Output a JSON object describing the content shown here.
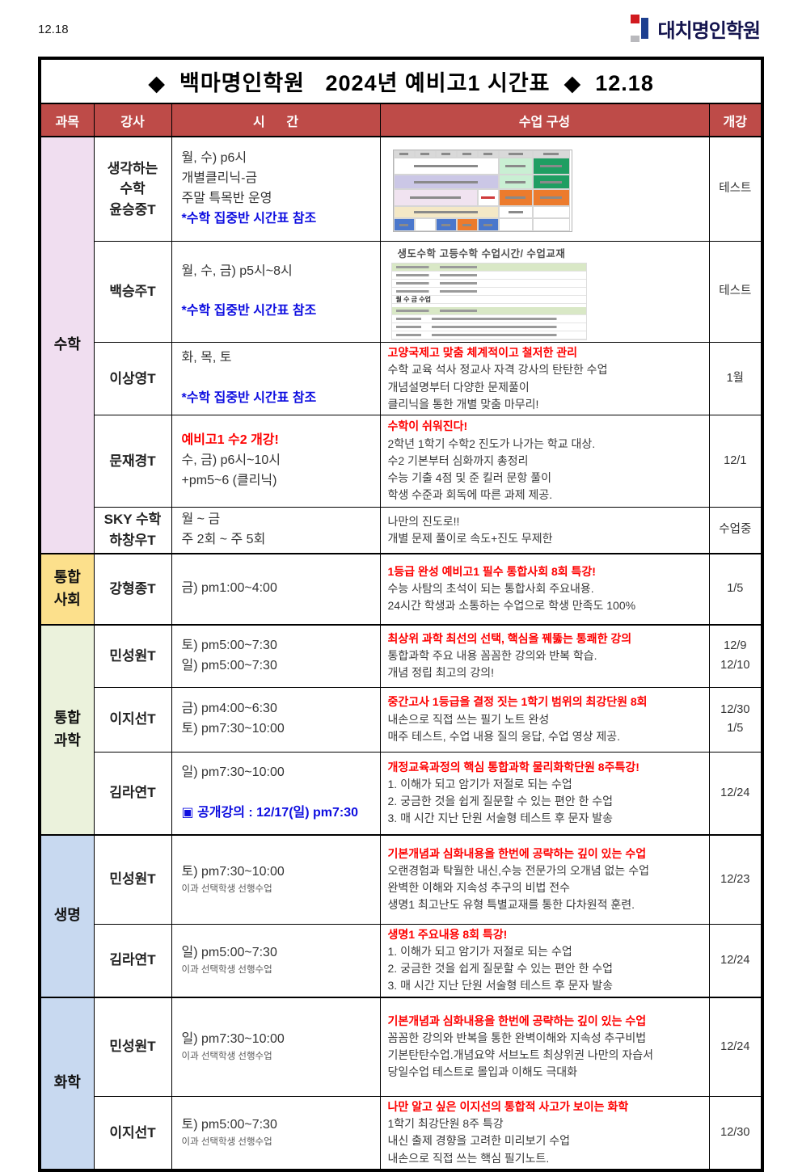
{
  "page": {
    "corner_date": "12.18"
  },
  "brand": {
    "logo_text": "대치명인학원"
  },
  "colors": {
    "header_bg": "#BE4B48",
    "header_text": "#FFFFFF",
    "subject_math_bg": "#F0DEF0",
    "subject_social_bg": "#FCE08C",
    "subject_science_bg": "#EBF2DC",
    "subject_bio_bg": "#C8D9F0",
    "subject_chem_bg": "#C8D9F0",
    "highlight_red": "#FE0000",
    "highlight_blue": "#0D0DE0"
  },
  "table": {
    "title": "◆  백마명인학원   2024년 예비고1 시간표  ◆  12.18",
    "headers": {
      "subject": "과목",
      "instructor": "강사",
      "time": "시      간",
      "composition": "수업 구성",
      "start": "개강"
    }
  },
  "groups": [
    {
      "label": "수학"
    },
    {
      "label": "통합\n사회"
    },
    {
      "label": "통합\n과학"
    },
    {
      "label": "생명"
    },
    {
      "label": "화학"
    }
  ],
  "embedded": {
    "math2_title": "생도수학 고등수학 수업시간/ 수업교재",
    "math2_bold_row": "월 수 금 수업"
  },
  "rows": [
    {
      "instructor": [
        {
          "t": "생각하는"
        },
        {
          "t": "수학"
        },
        {
          "t": "윤승중T"
        }
      ],
      "time": [
        {
          "t": "월, 수) p6시"
        },
        {
          "t": " 개별클리닉-금"
        },
        {
          "t": "주말 특목반 운영"
        },
        {
          "t": "*수학 집중반 시간표 참조",
          "s": "blue"
        }
      ],
      "comp": [],
      "start": [
        {
          "t": "테스트"
        }
      ]
    },
    {
      "instructor": [
        {
          "t": "백승주T"
        }
      ],
      "time": [
        {
          "t": "월, 수, 금) p5시~8시"
        },
        {
          "t": ""
        },
        {
          "t": "*수학 집중반 시간표 참조",
          "s": "blue"
        }
      ],
      "comp": [],
      "start": [
        {
          "t": "테스트"
        }
      ]
    },
    {
      "instructor": [
        {
          "t": "이상영T"
        }
      ],
      "time": [
        {
          "t": "화, 목, 토"
        },
        {
          "t": ""
        },
        {
          "t": "*수학 집중반 시간표 참조",
          "s": "blue"
        }
      ],
      "comp": [
        {
          "t": "고양국제고 맞춤   체계적이고 철저한 관리",
          "s": "red"
        },
        {
          "t": "수학 교육 석사 정교사 자격 강사의 탄탄한 수업"
        },
        {
          "t": "개념설명부터 다양한 문제풀이"
        },
        {
          "t": "클리닉을 통한 개별 맞춤 마무리!"
        }
      ],
      "start": [
        {
          "t": "1월"
        }
      ]
    },
    {
      "instructor": [
        {
          "t": "문재경T"
        }
      ],
      "time": [
        {
          "t": "예비고1 수2 개강!",
          "s": "red"
        },
        {
          "t": "수, 금) p6시~10시"
        },
        {
          "t": "+pm5~6 (클리닉)"
        }
      ],
      "comp": [
        {
          "t": "수학이 쉬워진다!",
          "s": "red"
        },
        {
          "t": "2학년 1학기 수학2 진도가 나가는 학교 대상."
        },
        {
          "t": "수2 기본부터 심화까지 총정리"
        },
        {
          "t": "수능 기출 4점 및 준 킬러 문항 풀이"
        },
        {
          "t": "학생 수준과 회독에 따른 과제 제공."
        }
      ],
      "start": [
        {
          "t": "12/1"
        }
      ]
    },
    {
      "instructor": [
        {
          "t": "SKY 수학"
        },
        {
          "t": "하창우T"
        }
      ],
      "time": [
        {
          "t": "월 ~ 금"
        },
        {
          "t": "주 2회 ~ 주 5회"
        }
      ],
      "comp": [
        {
          "t": "나만의 진도로!!"
        },
        {
          "t": "개별 문제 풀이로 속도+진도 무제한"
        }
      ],
      "start": [
        {
          "t": "수업중"
        }
      ]
    },
    {
      "instructor": [
        {
          "t": "강형종T"
        }
      ],
      "time": [
        {
          "t": "금) pm1:00~4:00"
        }
      ],
      "comp": [
        {
          "t": "1등급 완성 예비고1 필수 통합사회 8회 특강!",
          "s": "red"
        },
        {
          "t": "수능 사탐의 초석이 되는 통합사회 주요내용."
        },
        {
          "t": "24시간 학생과 소통하는 수업으로 학생 만족도 100%"
        }
      ],
      "start": [
        {
          "t": "1/5"
        }
      ]
    },
    {
      "instructor": [
        {
          "t": "민성원T"
        }
      ],
      "time": [
        {
          "t": "토) pm5:00~7:30"
        },
        {
          "t": "일) pm5:00~7:30"
        }
      ],
      "comp": [
        {
          "t": "최상위 과학 최선의 선택, 핵심을 꿰뚫는 통쾌한 강의",
          "s": "red"
        },
        {
          "t": "통합과학 주요 내용 꼼꼼한 강의와 반복 학습."
        },
        {
          "t": "개념 정립 최고의 강의!"
        }
      ],
      "start": [
        {
          "t": "12/9"
        },
        {
          "t": "12/10"
        }
      ]
    },
    {
      "instructor": [
        {
          "t": "이지선T"
        }
      ],
      "time": [
        {
          "t": "금) pm4:00~6:30"
        },
        {
          "t": "토) pm7:30~10:00"
        }
      ],
      "comp": [
        {
          "t": "중간고사 1등급을 결정 짓는 1학기 범위의 최강단원 8회",
          "s": "red"
        },
        {
          "t": "내손으로 직접 쓰는 필기 노트 완성"
        },
        {
          "t": "매주 테스트, 수업 내용 질의 응답, 수업 영상 제공."
        }
      ],
      "start": [
        {
          "t": "12/30"
        },
        {
          "t": "1/5"
        }
      ]
    },
    {
      "instructor": [
        {
          "t": "김라연T"
        }
      ],
      "time": [
        {
          "t": "일) pm7:30~10:00"
        },
        {
          "t": ""
        },
        {
          "t": "▣ 공개강의 : 12/17(일) pm7:30",
          "s": "blue"
        }
      ],
      "comp": [
        {
          "t": "개정교육과정의 핵심 통합과학 물리화학단원 8주특강!",
          "s": "red"
        },
        {
          "t": "1. 이해가 되고 암기가 저절로 되는 수업"
        },
        {
          "t": "2. 궁금한 것을 쉽게 질문할 수 있는 편안 한 수업"
        },
        {
          "t": "3. 매 시간 지난 단원 서술형 테스트 후 문자 발송"
        }
      ],
      "start": [
        {
          "t": "12/24"
        }
      ]
    },
    {
      "instructor": [
        {
          "t": "민성원T"
        }
      ],
      "time": [
        {
          "t": "토) pm7:30~10:00"
        },
        {
          "t": "이과 선택학생 선행수업",
          "s": "small"
        }
      ],
      "comp": [
        {
          "t": "기본개념과 심화내용을 한번에 공략하는 깊이 있는 수업",
          "s": "red"
        },
        {
          "t": "오랜경험과 탁월한 내신,수능 전문가의 오개념 없는 수업"
        },
        {
          "t": "완벽한 이해와 지속성 추구의 비법 전수"
        },
        {
          "t": "생명1 최고난도 유형 특별교재를 통한 다차원적 훈련."
        }
      ],
      "start": [
        {
          "t": "12/23"
        }
      ]
    },
    {
      "instructor": [
        {
          "t": "김라연T"
        }
      ],
      "time": [
        {
          "t": "일) pm5:00~7:30"
        },
        {
          "t": "이과 선택학생 선행수업",
          "s": "small"
        }
      ],
      "comp": [
        {
          "t": "생명1 주요내용 8회 특강!",
          "s": "red"
        },
        {
          "t": "1. 이해가 되고 암기가 저절로 되는 수업"
        },
        {
          "t": "2. 궁금한 것을 쉽게 질문할 수 있는 편안 한 수업"
        },
        {
          "t": "3. 매 시간 지난 단원 서술형 테스트 후 문자 발송"
        }
      ],
      "start": [
        {
          "t": "12/24"
        }
      ]
    },
    {
      "instructor": [
        {
          "t": "민성원T"
        }
      ],
      "time": [
        {
          "t": "일) pm7:30~10:00"
        },
        {
          "t": "이과 선택학생 선행수업",
          "s": "small"
        }
      ],
      "comp": [
        {
          "t": "기본개념과 심화내용을 한번에 공략하는 깊이 있는 수업",
          "s": "red"
        },
        {
          "t": "꼼꼼한 강의와 반복을 통한 완벽이해와 지속성 추구비법"
        },
        {
          "t": "기본탄탄수업.개념요약 서브노트 최상위권 나만의 자습서"
        },
        {
          "t": "당일수업 테스트로 몰입과 이해도 극대화"
        }
      ],
      "start": [
        {
          "t": "12/24"
        }
      ]
    },
    {
      "instructor": [
        {
          "t": "이지선T"
        }
      ],
      "time": [
        {
          "t": "토) pm5:00~7:30"
        },
        {
          "t": "이과 선택학생 선행수업",
          "s": "small"
        }
      ],
      "comp": [
        {
          "t": "나만 알고 싶은 이지선의 통합적 사고가 보이는 화학",
          "s": "red"
        },
        {
          "t": "1학기 최강단원 8주 특강"
        },
        {
          "t": "내신 출제 경향을 고려한 미리보기 수업"
        },
        {
          "t": "내손으로 직접 쓰는 핵심 필기노트."
        }
      ],
      "start": [
        {
          "t": "12/30"
        }
      ]
    }
  ]
}
